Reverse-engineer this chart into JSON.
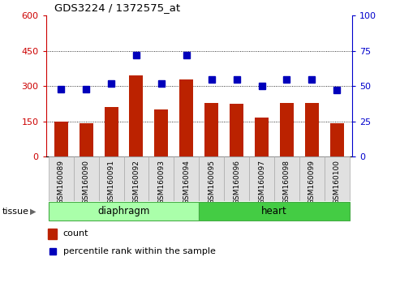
{
  "title": "GDS3224 / 1372575_at",
  "samples": [
    "GSM160089",
    "GSM160090",
    "GSM160091",
    "GSM160092",
    "GSM160093",
    "GSM160094",
    "GSM160095",
    "GSM160096",
    "GSM160097",
    "GSM160098",
    "GSM160099",
    "GSM160100"
  ],
  "counts": [
    148,
    143,
    210,
    345,
    200,
    330,
    228,
    225,
    165,
    228,
    228,
    140
  ],
  "percentiles": [
    48,
    48,
    52,
    72,
    52,
    72,
    55,
    55,
    50,
    55,
    55,
    47
  ],
  "bar_color": "#BB2200",
  "dot_color": "#0000BB",
  "ylim_left": [
    0,
    600
  ],
  "ylim_right": [
    0,
    100
  ],
  "yticks_left": [
    0,
    150,
    300,
    450,
    600
  ],
  "yticks_right": [
    0,
    25,
    50,
    75,
    100
  ],
  "left_axis_color": "#CC0000",
  "right_axis_color": "#0000CC",
  "diaphragm_color": "#AAFFAA",
  "heart_color": "#44CC44",
  "border_color": "#44AA44",
  "tissue_label": "tissue",
  "diaphragm_label": "diaphragm",
  "heart_label": "heart",
  "legend_count": "count",
  "legend_pct": "percentile rank within the sample",
  "n_diaphragm": 6,
  "n_heart": 6
}
